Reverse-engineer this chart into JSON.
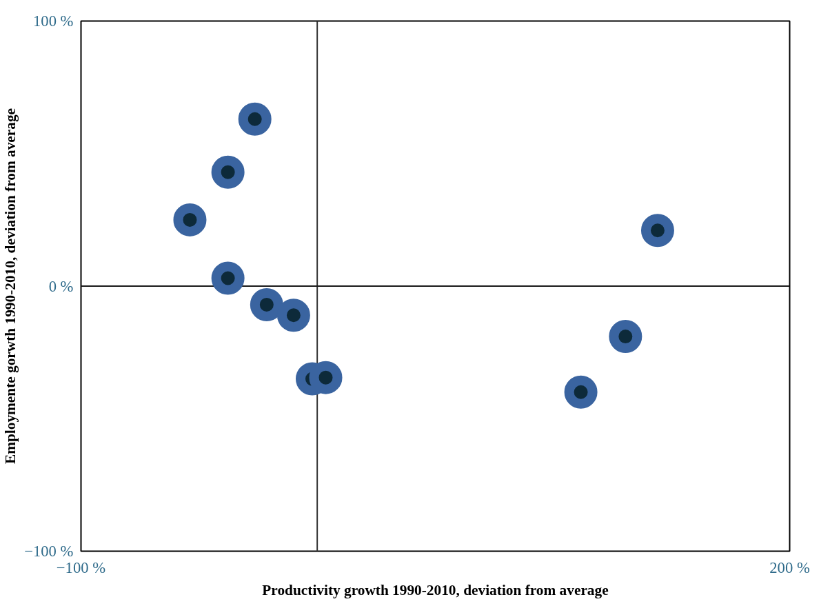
{
  "chart_data": {
    "type": "scatter",
    "xlabel": "Productivity growth 1990-2010, deviation from average",
    "ylabel": "Employmente gorwth 1990-2010, deviation from average",
    "x": [
      -26.4,
      -37.8,
      -53.9,
      -37.8,
      -21.4,
      -10,
      -2.1,
      3.6,
      111.6,
      130.5,
      144.1
    ],
    "series": [
      {
        "color": "#3a64a0",
        "values": [
          63,
          43,
          25,
          3,
          -7,
          -11,
          -35,
          -34.5,
          -40,
          -19,
          21
        ]
      }
    ],
    "xlim": [
      -100,
      200
    ],
    "ylim": [
      -100,
      100
    ],
    "xticks": [
      {
        "value": -100,
        "label": "−100 %"
      },
      {
        "value": 200,
        "label": "200 %"
      }
    ],
    "yticks": [
      {
        "value": -100,
        "label": "−100 %"
      },
      {
        "value": 0,
        "label": "0 %"
      },
      {
        "value": 100,
        "label": "100 %"
      }
    ],
    "ref_lines": [
      {
        "axis": "x",
        "value": 0,
        "label": null,
        "color": "#333333"
      },
      {
        "axis": "y",
        "value": 0,
        "label": null,
        "color": "#1a1a1a"
      }
    ],
    "grid": false,
    "marker": "circle"
  }
}
